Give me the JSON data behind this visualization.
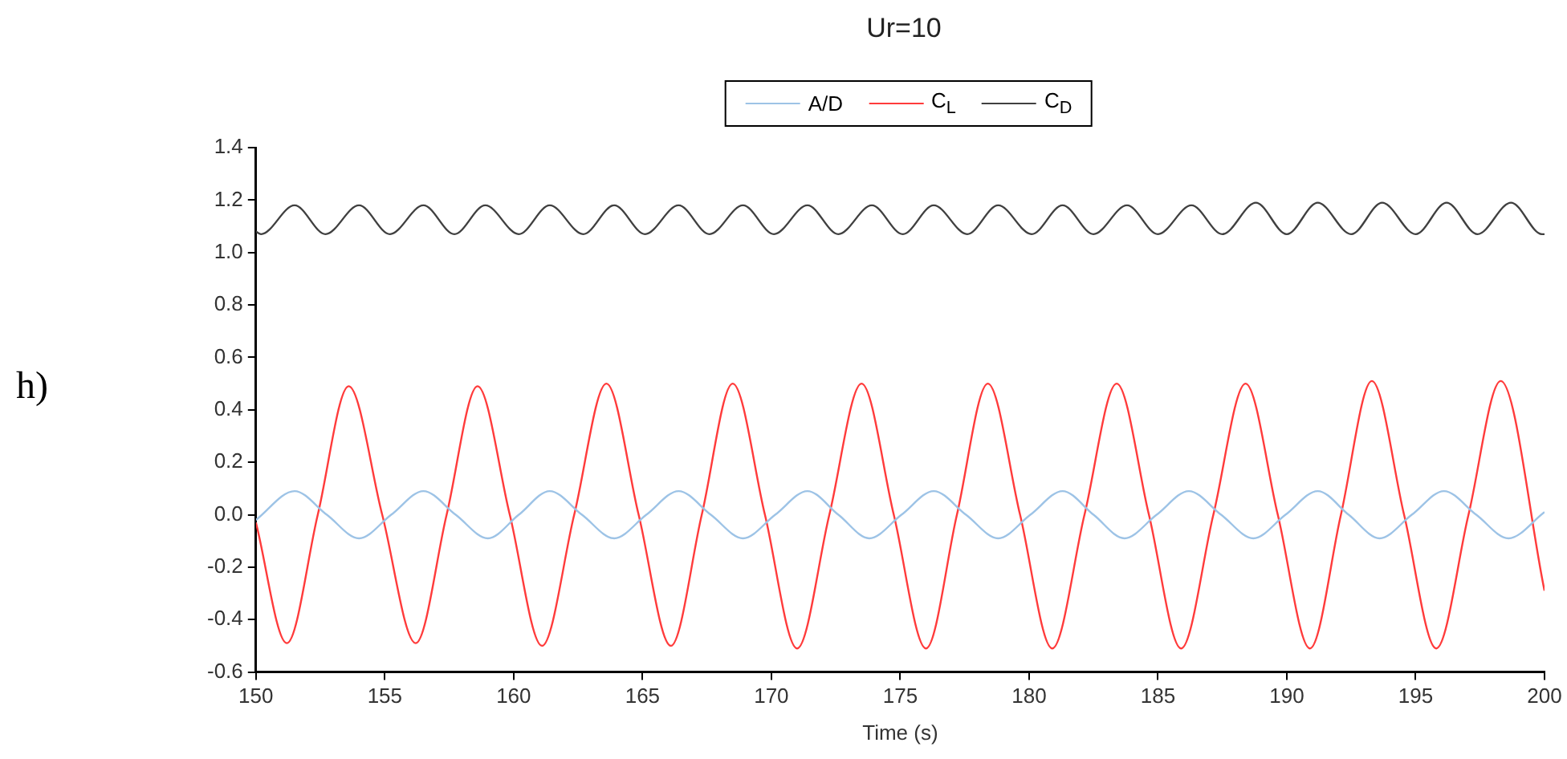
{
  "chart_data": {
    "type": "line",
    "title": "Ur=10",
    "xlabel": "Time (s)",
    "annotations": [
      "h)"
    ],
    "xlim": [
      150,
      200
    ],
    "xticks": [
      150,
      155,
      160,
      165,
      170,
      175,
      180,
      185,
      190,
      195,
      200
    ],
    "ylim": [
      -0.6,
      1.4
    ],
    "yticks": [
      {
        "value": -0.6,
        "label": "-0.6"
      },
      {
        "value": -0.4,
        "label": "-0.4"
      },
      {
        "value": -0.2,
        "label": "-0.2"
      },
      {
        "value": 0,
        "label": "0.0"
      },
      {
        "value": 0.2,
        "label": "0.2"
      },
      {
        "value": 0.4,
        "label": "0.4"
      },
      {
        "value": 0.6,
        "label": "0.6"
      },
      {
        "value": 0.8,
        "label": "0.8"
      },
      {
        "value": 1,
        "label": "1.0"
      },
      {
        "value": 1.2,
        "label": "1.2"
      },
      {
        "value": 1.4,
        "label": "1.4"
      }
    ],
    "grid": false,
    "legend": "top",
    "marker": "none",
    "line_style": "solid",
    "series": [
      {
        "name": "A/D",
        "color": "#9dc3e6",
        "x": [
          150.0,
          151.5,
          152.75,
          154.0,
          155.25,
          156.5,
          157.75,
          159.0,
          160.2,
          161.4,
          162.65,
          163.9,
          165.15,
          166.4,
          167.65,
          168.9,
          170.15,
          171.4,
          172.6,
          173.8,
          175.05,
          176.3,
          177.55,
          178.8,
          180.05,
          181.3,
          182.5,
          183.7,
          184.95,
          186.2,
          187.45,
          188.7,
          189.95,
          191.2,
          192.4,
          193.6,
          194.85,
          196.1,
          197.35,
          198.6,
          200.0
        ],
        "values": [
          -0.02,
          0.09,
          0,
          -0.09,
          0,
          0.09,
          0,
          -0.09,
          0,
          0.09,
          0,
          -0.09,
          0,
          0.09,
          0,
          -0.09,
          0,
          0.09,
          0,
          -0.09,
          0,
          0.09,
          0,
          -0.09,
          0,
          0.09,
          0,
          -0.09,
          0,
          0.09,
          0,
          -0.09,
          0,
          0.09,
          0,
          -0.09,
          0,
          0.09,
          0,
          -0.09,
          0.01
        ]
      },
      {
        "name": "C$_{L}$",
        "color": "#ff3b3b",
        "x": [
          150.0,
          151.2,
          152.4,
          153.6,
          154.9,
          156.2,
          157.4,
          158.6,
          159.85,
          161.1,
          162.35,
          163.6,
          164.85,
          166.1,
          167.3,
          168.5,
          169.75,
          171.0,
          172.25,
          173.5,
          174.75,
          176.0,
          177.2,
          178.4,
          179.65,
          180.9,
          182.15,
          183.4,
          184.65,
          185.9,
          187.15,
          188.4,
          189.65,
          190.9,
          192.1,
          193.3,
          194.55,
          195.8,
          197.05,
          198.3,
          200.0
        ],
        "values": [
          -0.03,
          -0.49,
          0,
          0.49,
          0,
          -0.49,
          0,
          0.49,
          0,
          -0.5,
          0,
          0.5,
          0,
          -0.5,
          0,
          0.5,
          0,
          -0.51,
          0,
          0.5,
          0,
          -0.51,
          0,
          0.5,
          0,
          -0.51,
          0,
          0.5,
          0,
          -0.51,
          0,
          0.5,
          0,
          -0.51,
          0,
          0.51,
          0,
          -0.51,
          0,
          0.51,
          -0.29
        ]
      },
      {
        "name": "C$_{D}$",
        "color": "#404040",
        "x": [
          150.0,
          150.2,
          151.5,
          152.7,
          154.0,
          155.2,
          156.5,
          157.7,
          158.9,
          160.2,
          161.4,
          162.7,
          163.9,
          165.1,
          166.4,
          167.6,
          168.9,
          170.1,
          171.4,
          172.6,
          173.9,
          175.1,
          176.3,
          177.6,
          178.8,
          180.1,
          181.3,
          182.5,
          183.8,
          185.0,
          186.3,
          187.5,
          188.8,
          190.0,
          191.2,
          192.5,
          193.7,
          195.0,
          196.2,
          197.4,
          198.7,
          199.9,
          200.0
        ],
        "values": [
          1.08,
          1.07,
          1.18,
          1.07,
          1.18,
          1.07,
          1.18,
          1.07,
          1.18,
          1.07,
          1.18,
          1.07,
          1.18,
          1.07,
          1.18,
          1.07,
          1.18,
          1.07,
          1.18,
          1.07,
          1.18,
          1.07,
          1.18,
          1.07,
          1.18,
          1.07,
          1.18,
          1.07,
          1.18,
          1.07,
          1.18,
          1.07,
          1.19,
          1.07,
          1.19,
          1.07,
          1.19,
          1.07,
          1.19,
          1.07,
          1.19,
          1.07,
          1.07
        ]
      }
    ]
  }
}
